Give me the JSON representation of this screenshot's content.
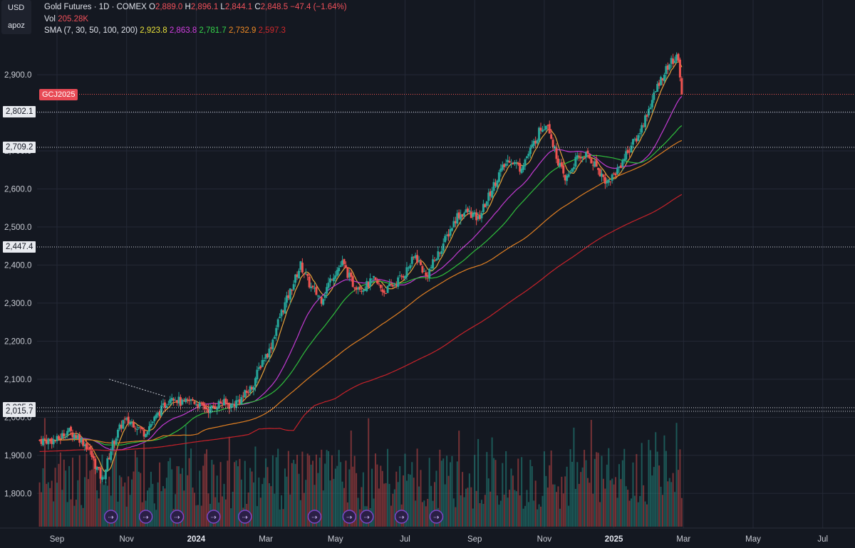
{
  "corner": {
    "currency": "USD",
    "mode": "apoz"
  },
  "legend": {
    "title": "Gold Futures · 1D · COMEX",
    "open_label": "O",
    "open": "2,889.0",
    "high_label": "H",
    "high": "2,896.1",
    "low_label": "L",
    "low": "2,844.1",
    "close_label": "C",
    "close": "2,848.5",
    "change": "−47.4 (−1.64%)",
    "vol_label": "Vol",
    "vol": "205.28K",
    "sma_label": "SMA (7, 30, 50, 100, 200)",
    "sma7": "2,923.8",
    "sma30": "2,863.8",
    "sma50": "2,781.7",
    "sma100": "2,732.9",
    "sma200": "2,597.3"
  },
  "symbol_tag": "GCJ2025",
  "price_tags": [
    {
      "label": "2,802.1",
      "value": 2802.1
    },
    {
      "label": "2,709.2",
      "value": 2709.2
    },
    {
      "label": "2,447.4",
      "value": 2447.4
    },
    {
      "label": "2,025.2",
      "value": 2025.2
    },
    {
      "label": "2,015.7",
      "value": 2015.7
    }
  ],
  "colors": {
    "background": "#141821",
    "up": "#26a69a",
    "down": "#ef5350",
    "sma7": "#e8a33a",
    "sma30": "#c23ad2",
    "sma50": "#2fbf3c",
    "sma100": "#e07f22",
    "sma200": "#c8222a",
    "event_marker": "#7b46c8"
  },
  "chart_data": {
    "type": "candlestick",
    "title": "Gold Futures · 1D · COMEX",
    "y_ticks": [
      "2,900.0",
      "2,800.0",
      "2,700.0",
      "2,600.0",
      "2,500.0",
      "2,400.0",
      "2,300.0",
      "2,200.0",
      "2,100.0",
      "2,000.0",
      "1,900.0",
      "1,800.0"
    ],
    "y_tick_values": [
      2900,
      2800,
      2700,
      2600,
      2500,
      2400,
      2300,
      2200,
      2100,
      2000,
      1900,
      1800
    ],
    "ylim": [
      1772,
      3040
    ],
    "x_ticks": [
      {
        "label": "Sep",
        "month_index": 0,
        "bold": false
      },
      {
        "label": "Nov",
        "month_index": 2,
        "bold": false
      },
      {
        "label": "2024",
        "month_index": 4,
        "bold": true
      },
      {
        "label": "Mar",
        "month_index": 6,
        "bold": false
      },
      {
        "label": "May",
        "month_index": 8,
        "bold": false
      },
      {
        "label": "Jul",
        "month_index": 10,
        "bold": false
      },
      {
        "label": "Sep",
        "month_index": 12,
        "bold": false
      },
      {
        "label": "Nov",
        "month_index": 14,
        "bold": false
      },
      {
        "label": "2025",
        "month_index": 16,
        "bold": true
      },
      {
        "label": "Mar",
        "month_index": 18,
        "bold": false
      },
      {
        "label": "May",
        "month_index": 20,
        "bold": false
      },
      {
        "label": "Jul",
        "month_index": 22,
        "bold": false
      }
    ],
    "x_month_start": 0,
    "x_month_end": 23.1,
    "close_path": {
      "months": [
        0,
        0.3,
        0.6,
        0.9,
        1.1,
        1.3,
        1.6,
        1.9,
        2.2,
        2.5,
        2.8,
        3.0,
        3.3,
        3.6,
        3.9,
        4.1,
        4.4,
        4.7,
        5.0,
        5.3,
        5.6,
        5.9,
        6.1,
        6.4,
        6.7,
        7.0,
        7.3,
        7.6,
        7.9,
        8.2,
        8.5,
        8.8,
        9.1,
        9.4,
        9.7,
        10.0,
        10.3,
        10.6,
        10.9,
        11.2,
        11.5,
        11.8,
        12.1,
        12.4,
        12.7,
        13.0,
        13.3,
        13.6,
        13.9,
        14.1,
        14.3,
        14.6,
        14.9,
        15.2,
        15.5,
        15.8,
        16.1,
        16.4,
        16.7,
        17.0,
        17.3,
        17.6,
        17.85,
        17.95
      ],
      "values": [
        1940,
        1965,
        1950,
        1920,
        1875,
        1835,
        1930,
        1990,
        1985,
        1960,
        1995,
        2020,
        2060,
        2035,
        2045,
        2030,
        2020,
        2040,
        2030,
        2050,
        2080,
        2150,
        2175,
        2265,
        2330,
        2400,
        2340,
        2310,
        2370,
        2405,
        2350,
        2340,
        2360,
        2330,
        2350,
        2380,
        2425,
        2370,
        2420,
        2475,
        2530,
        2540,
        2520,
        2580,
        2640,
        2680,
        2655,
        2700,
        2760,
        2775,
        2700,
        2620,
        2675,
        2690,
        2660,
        2615,
        2650,
        2700,
        2740,
        2810,
        2880,
        2930,
        2945,
        2848.5
      ]
    },
    "candles": "≈120 daily OHLC bars reconstructed from the visual trend (Sep 2023 → Feb 2025)",
    "volume_max_k": 380,
    "sma_series": [
      {
        "name": "SMA 7",
        "color": "#e8a33a",
        "period": 7
      },
      {
        "name": "SMA 30",
        "color": "#c23ad2",
        "period": 30
      },
      {
        "name": "SMA 50",
        "color": "#2fbf3c",
        "period": 50
      },
      {
        "name": "SMA 100",
        "color": "#e07f22",
        "period": 100
      },
      {
        "name": "SMA 200",
        "color": "#c8222a",
        "period": 200
      }
    ],
    "trendline": {
      "start_month": 1.5,
      "start_value": 2100,
      "end_month": 3.1,
      "end_value": 2055,
      "type": "dotted"
    },
    "event_markers_months": [
      1.55,
      2.55,
      3.45,
      4.5,
      5.4,
      7.4,
      8.4,
      8.9,
      9.9,
      10.9
    ],
    "last_price": 2848.5
  }
}
